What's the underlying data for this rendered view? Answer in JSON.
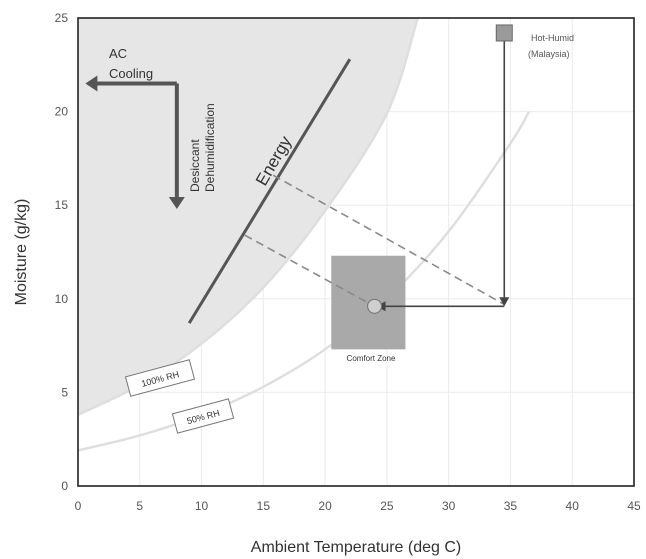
{
  "chart_data": {
    "type": "line",
    "title": "",
    "xlabel": "Ambient Temperature (deg C)",
    "ylabel": "Moisture (g/kg)",
    "xlim": [
      0,
      45
    ],
    "ylim": [
      0,
      25
    ],
    "xticks": [
      "0",
      "5",
      "10",
      "15",
      "20",
      "25",
      "30",
      "35",
      "40",
      "45"
    ],
    "yticks": [
      "0",
      "5",
      "10",
      "15",
      "20",
      "25"
    ],
    "grid": true,
    "series": [
      {
        "name": "100% RH",
        "x": [
          0,
          5,
          10,
          15,
          20,
          25,
          27.5
        ],
        "y": [
          3.8,
          5.4,
          7.6,
          10.6,
          14.7,
          19.9,
          25
        ]
      },
      {
        "name": "50% RH",
        "x": [
          0,
          5,
          10,
          15,
          20,
          25,
          30,
          35,
          36.5
        ],
        "y": [
          1.9,
          2.7,
          3.8,
          5.3,
          7.3,
          10.0,
          13.6,
          18.3,
          20
        ]
      }
    ],
    "annotations": {
      "ac_cooling": "AC Cooling",
      "desiccant": "Desiccant Dehumidification",
      "energy": "Energy",
      "hot_humid_line1": "Hot-Humid",
      "hot_humid_line2": "(Malaysia)",
      "comfort_zone": "Comfort Zone",
      "rh100": "100% RH",
      "rh50": "50% RH"
    },
    "energy_line": {
      "x": [
        9,
        22
      ],
      "y": [
        8.7,
        22.8
      ]
    },
    "hot_humid_point": {
      "x": 34.5,
      "y": 24.2
    },
    "comfort_point": {
      "x": 24,
      "y": 9.6
    },
    "arrow_corner": {
      "x": 34.5,
      "y": 9.6
    },
    "comfort_zone_box": {
      "x_min": 20.5,
      "x_max": 26.5,
      "y_min": 7.3,
      "y_max": 12.3
    },
    "dashed_lines": [
      {
        "x": [
          15.8,
          34.5
        ],
        "y": [
          16.6,
          9.7
        ]
      },
      {
        "x": [
          13.5,
          24
        ],
        "y": [
          13.4,
          9.6
        ]
      }
    ],
    "colors": {
      "shade": "#e6e6e6",
      "curve": "#dedede",
      "dark": "#555555",
      "dashed": "#8a8a8a",
      "box_fill": "#a9a9a9",
      "grid": "#ebebeb"
    }
  }
}
